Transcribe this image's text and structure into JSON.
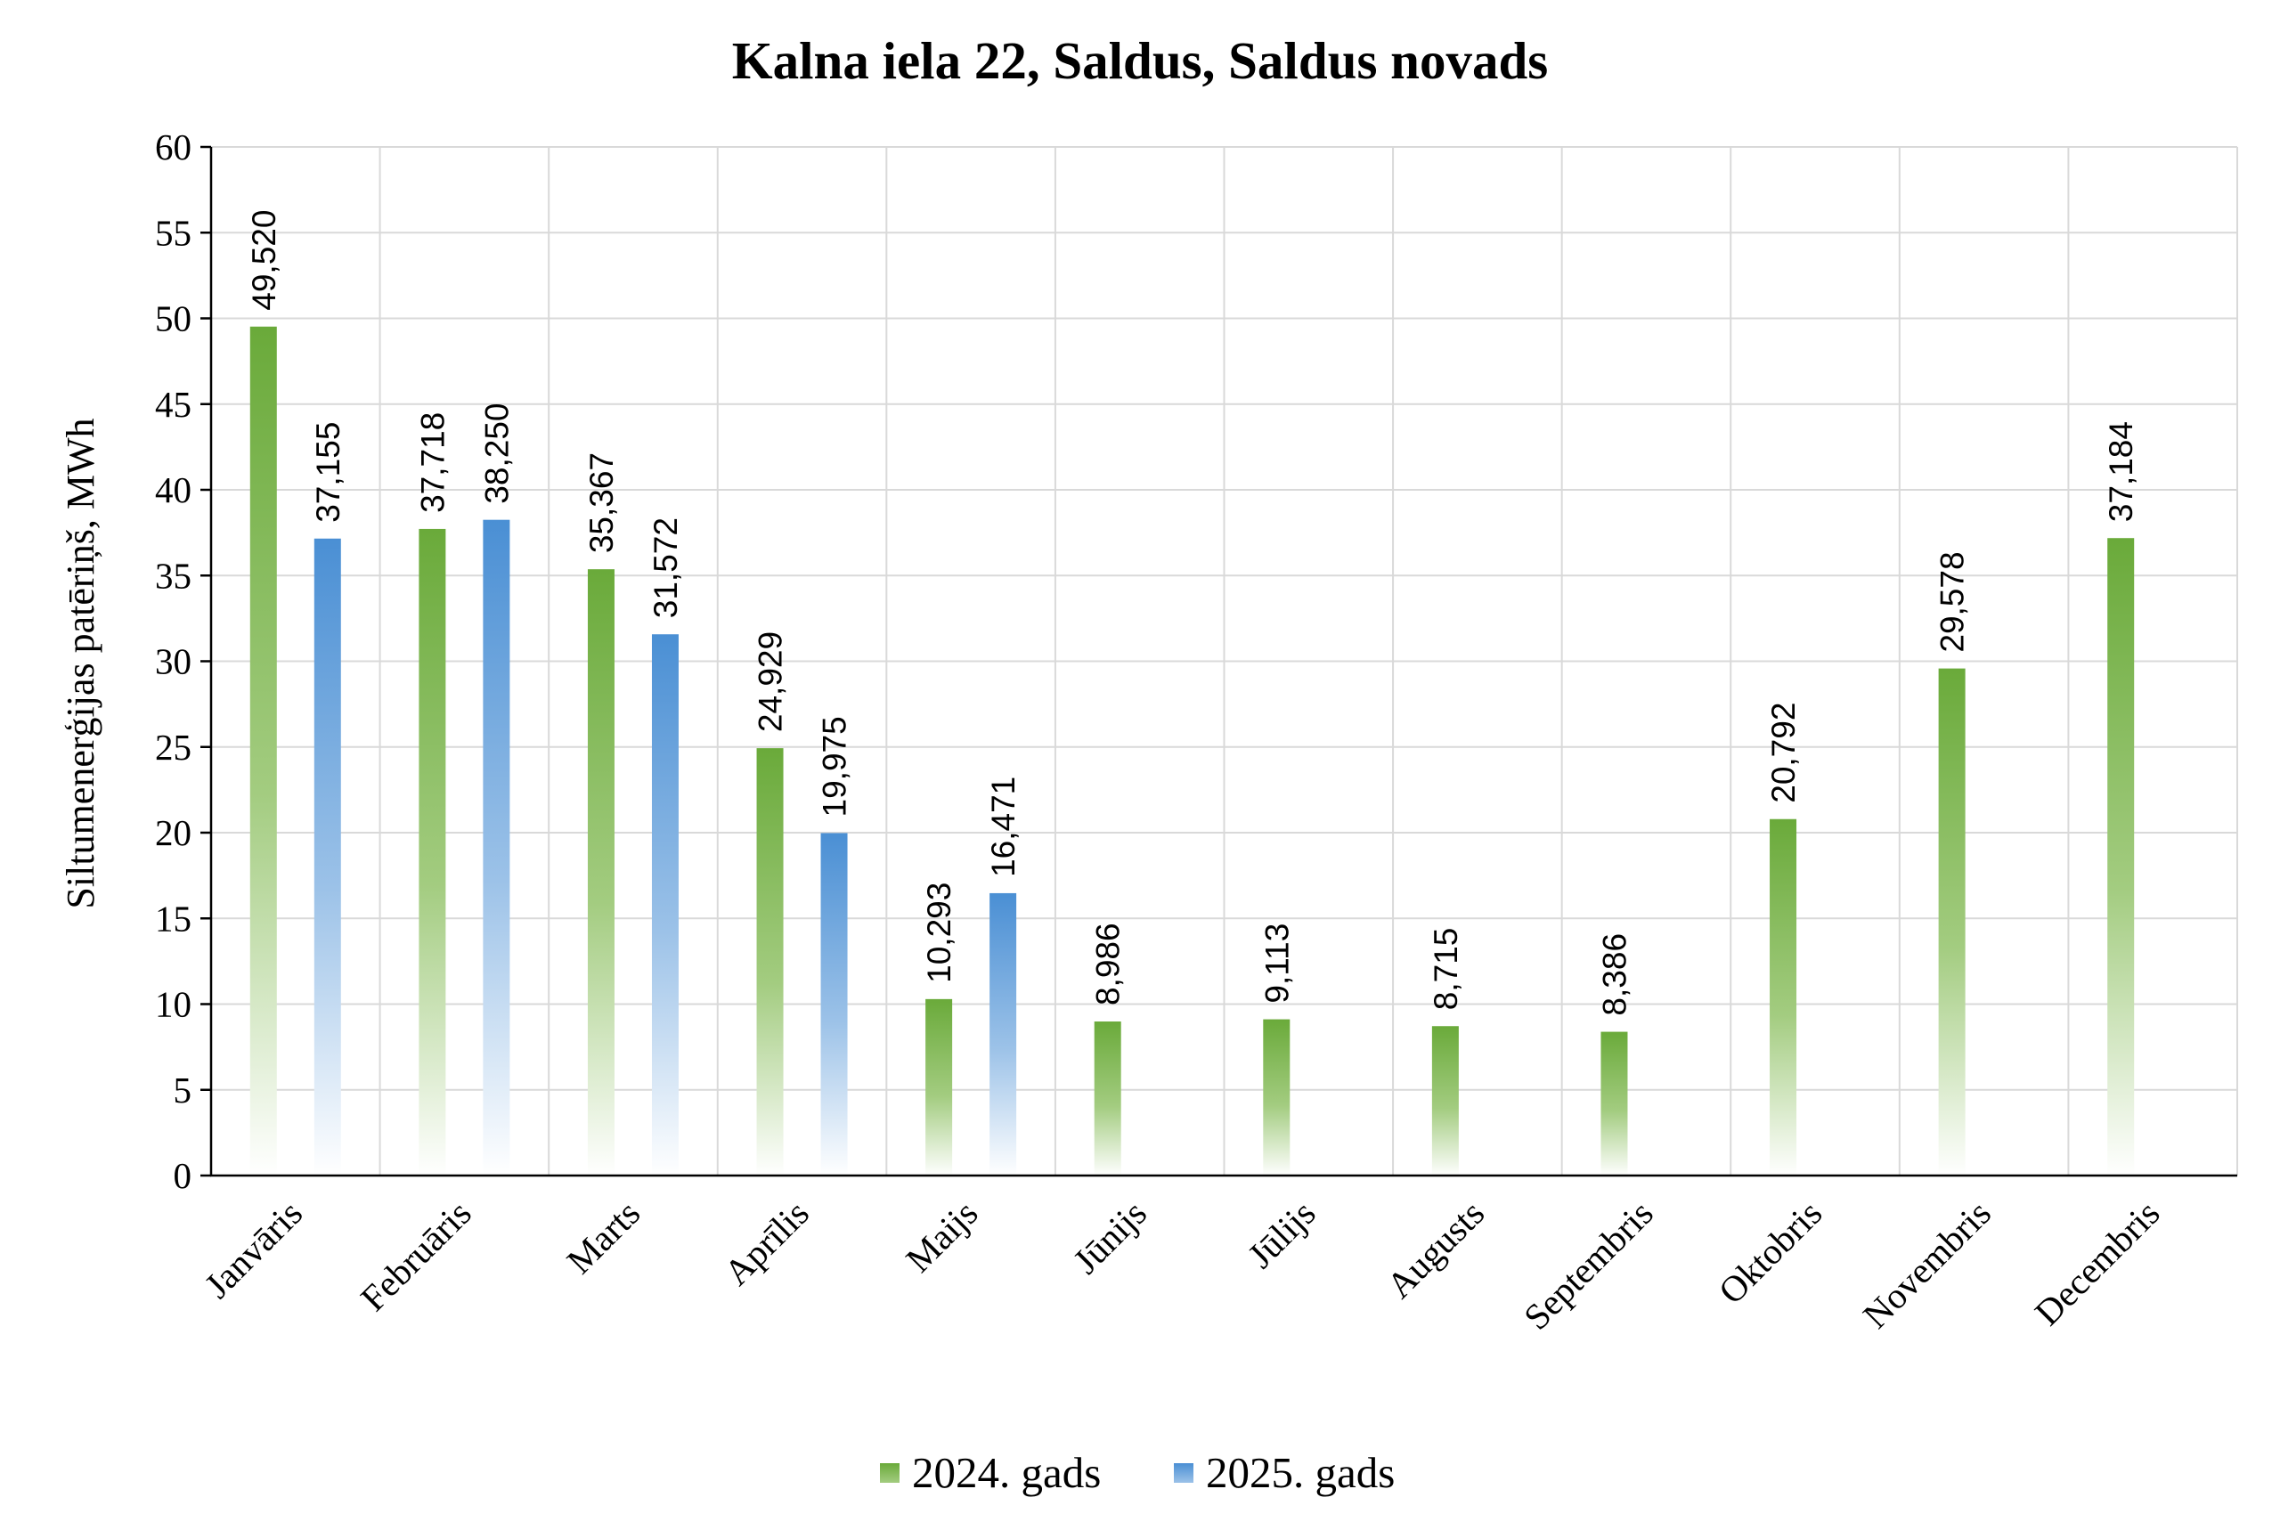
{
  "chart_data": {
    "type": "bar",
    "title": "Kalna iela 22, Saldus, Saldus novads",
    "ylabel": "Siltumenerģijas patēriņš, MWh",
    "xlabel": "",
    "ylim": [
      0,
      60
    ],
    "yticks": [
      0,
      5,
      10,
      15,
      20,
      25,
      30,
      35,
      40,
      45,
      50,
      55,
      60
    ],
    "grid": true,
    "legend_position": "bottom",
    "categories": [
      "Janvāris",
      "Februāris",
      "Marts",
      "Aprīlis",
      "Maijs",
      "Jūnijs",
      "Jūlijs",
      "Augusts",
      "Septembris",
      "Oktobris",
      "Novembris",
      "Decembris"
    ],
    "series": [
      {
        "name": "2024. gads",
        "color": "#6aaa3a",
        "values": [
          49.52,
          37.718,
          35.367,
          24.929,
          10.293,
          8.986,
          9.113,
          8.715,
          8.386,
          20.792,
          29.578,
          37.184
        ],
        "labels": [
          "49,520",
          "37,718",
          "35,367",
          "24,929",
          "10,293",
          "8,986",
          "9,113",
          "8,715",
          "8,386",
          "20,792",
          "29,578",
          "37,184"
        ]
      },
      {
        "name": "2025. gads",
        "color": "#4a8fd4",
        "values": [
          37.155,
          38.25,
          31.572,
          19.975,
          16.471,
          null,
          null,
          null,
          null,
          null,
          null,
          null
        ],
        "labels": [
          "37,155",
          "38,250",
          "31,572",
          "19,975",
          "16,471",
          "",
          "",
          "",
          "",
          "",
          "",
          ""
        ]
      }
    ]
  }
}
